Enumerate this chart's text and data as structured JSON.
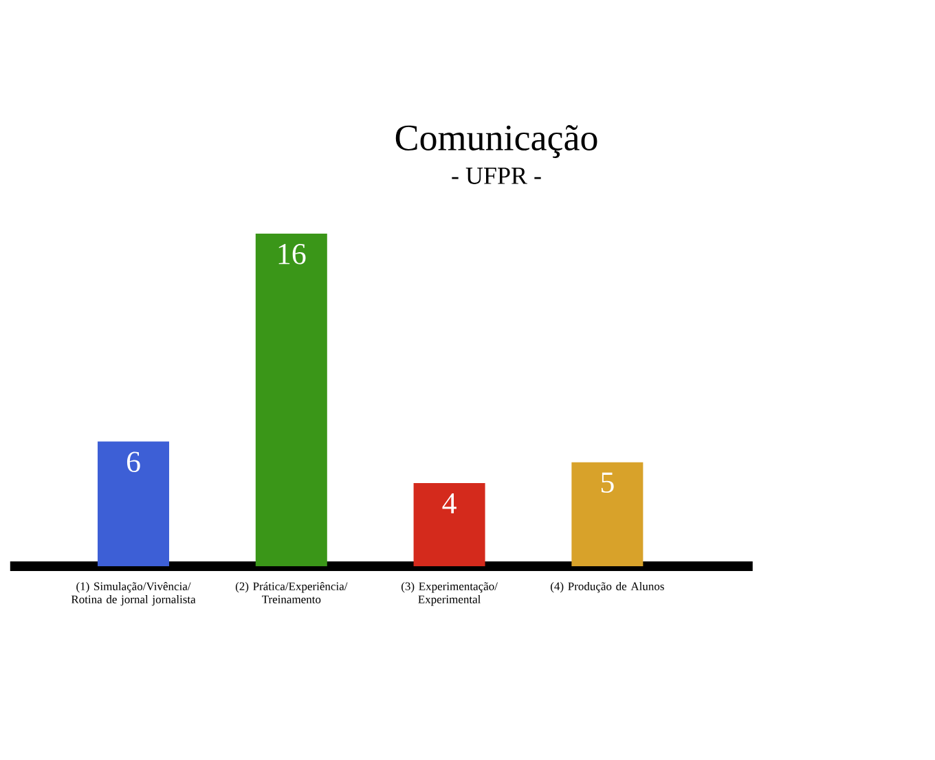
{
  "chart_data": {
    "type": "bar",
    "title": "Comunicação",
    "subtitle": "- UFPR -",
    "categories": [
      "(1) Simulação/Vivência/ Rotina de jornal jornalista",
      "(2) Prática/Experiência/ Treinamento",
      "(3) Experimentação/ Experimental",
      "(4) Produção de Alunos"
    ],
    "values": [
      6,
      16,
      4,
      5
    ],
    "colors": [
      "#3d5fd6",
      "#3a9618",
      "#d42a1c",
      "#d8a22a"
    ],
    "data_labels": true
  }
}
